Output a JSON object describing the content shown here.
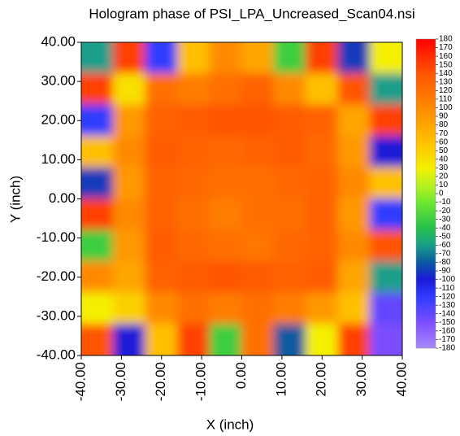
{
  "chart_data": {
    "type": "heatmap",
    "title": "Hologram phase of PSI_LPA_Uncreased_Scan04.nsi",
    "x_label": "X (inch)",
    "y_label": "Y (inch)",
    "x": [
      -36,
      -28,
      -20,
      -12,
      -4,
      4,
      12,
      20,
      28,
      36
    ],
    "y": [
      36,
      28,
      20,
      12,
      4,
      -4,
      -12,
      -20,
      -28,
      -36
    ],
    "z": [
      [
        -60,
        150,
        -120,
        60,
        100,
        80,
        -30,
        150,
        -90,
        30
      ],
      [
        150,
        40,
        120,
        110,
        120,
        130,
        100,
        60,
        140,
        -60
      ],
      [
        -120,
        90,
        130,
        135,
        140,
        140,
        135,
        130,
        80,
        150
      ],
      [
        60,
        100,
        135,
        130,
        125,
        130,
        135,
        125,
        90,
        -100
      ],
      [
        -90,
        90,
        130,
        125,
        120,
        120,
        125,
        130,
        100,
        60
      ],
      [
        150,
        100,
        130,
        120,
        110,
        120,
        120,
        130,
        90,
        -120
      ],
      [
        -30,
        90,
        135,
        125,
        120,
        115,
        125,
        130,
        100,
        140
      ],
      [
        100,
        80,
        130,
        135,
        140,
        135,
        130,
        135,
        80,
        -60
      ],
      [
        30,
        50,
        100,
        120,
        110,
        120,
        110,
        90,
        60,
        -140
      ],
      [
        140,
        -100,
        60,
        150,
        -30,
        120,
        -80,
        30,
        150,
        -150
      ]
    ],
    "xlim": [
      -40,
      40
    ],
    "ylim": [
      -40,
      40
    ],
    "xticks": [
      {
        "value": -40,
        "label": "-40.00"
      },
      {
        "value": -30,
        "label": "-30.00"
      },
      {
        "value": -20,
        "label": "-20.00"
      },
      {
        "value": -10,
        "label": "-10.00"
      },
      {
        "value": 0,
        "label": "0.00"
      },
      {
        "value": 10,
        "label": "10.00"
      },
      {
        "value": 20,
        "label": "20.00"
      },
      {
        "value": 30,
        "label": "30.00"
      },
      {
        "value": 40,
        "label": "40.00"
      }
    ],
    "yticks": [
      {
        "value": -40,
        "label": "-40.00"
      },
      {
        "value": -30,
        "label": "-30.00"
      },
      {
        "value": -20,
        "label": "-20.00"
      },
      {
        "value": -10,
        "label": "-10.00"
      },
      {
        "value": 0,
        "label": "0.00"
      },
      {
        "value": 10,
        "label": "10.00"
      },
      {
        "value": 20,
        "label": "20.00"
      },
      {
        "value": 30,
        "label": "30.00"
      },
      {
        "value": 40,
        "label": "40.00"
      }
    ],
    "colorbar_lim": [
      -180,
      180
    ],
    "colorbar_ticks": [
      180,
      170,
      160,
      150,
      140,
      130,
      120,
      110,
      100,
      90,
      80,
      70,
      60,
      50,
      40,
      30,
      20,
      10,
      0,
      -10,
      -20,
      -30,
      -40,
      -50,
      -60,
      -70,
      -80,
      -90,
      -100,
      -110,
      -120,
      -130,
      -140,
      -150,
      -160,
      -170,
      -180
    ],
    "colorscale": [
      {
        "value": -180,
        "color": "#a78bfa"
      },
      {
        "value": -150,
        "color": "#7c4dff"
      },
      {
        "value": -120,
        "color": "#2f3cff"
      },
      {
        "value": -100,
        "color": "#1b1bd8"
      },
      {
        "value": -80,
        "color": "#0a5aa0"
      },
      {
        "value": -60,
        "color": "#1a9f8a"
      },
      {
        "value": -40,
        "color": "#25c04a"
      },
      {
        "value": -10,
        "color": "#6ee830"
      },
      {
        "value": 10,
        "color": "#b8f020"
      },
      {
        "value": 30,
        "color": "#f4f000"
      },
      {
        "value": 60,
        "color": "#ffc000"
      },
      {
        "value": 100,
        "color": "#ff8a00"
      },
      {
        "value": 140,
        "color": "#ff5500"
      },
      {
        "value": 180,
        "color": "#ff0000"
      }
    ]
  }
}
